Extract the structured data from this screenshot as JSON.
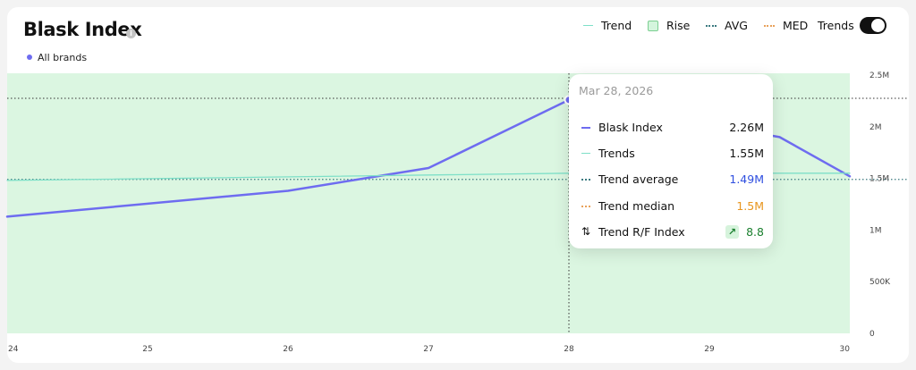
{
  "header": {
    "title": "Blask Index",
    "info_icon": "info-icon",
    "subtitle": "All brands"
  },
  "legend": {
    "trend": "Trend",
    "rise": "Rise",
    "avg": "AVG",
    "med": "MED",
    "toggle_label": "Trends",
    "toggle_on": true
  },
  "tooltip": {
    "date": "Mar 28, 2026",
    "rows": [
      {
        "label": "Blask Index",
        "value": "2.26M"
      },
      {
        "label": "Trends",
        "value": "1.55M"
      },
      {
        "label": "Trend average",
        "value": "1.49M"
      },
      {
        "label": "Trend median",
        "value": "1.5M"
      },
      {
        "label": "Trend R/F Index",
        "value": "8.8",
        "icon": "trend-up-arrow-icon"
      }
    ]
  },
  "colors": {
    "index_line": "#6e6cf0",
    "trend_line": "#7ee0c8",
    "rise_fill": "#dbf6e1",
    "avg_line": "#3c7a80",
    "med_line": "#e9a25b",
    "value_blue": "#2f4fe0",
    "value_orange": "#e8951e",
    "value_green": "#1a7f2e"
  },
  "chart_data": {
    "type": "line",
    "x": [
      24,
      25,
      26,
      27,
      28,
      29,
      30
    ],
    "x_ticks": [
      "24",
      "25",
      "26",
      "27",
      "28",
      "29",
      "30"
    ],
    "y_ticks": [
      "0",
      "500K",
      "1M",
      "1.5M",
      "2M",
      "2.5M"
    ],
    "y_tick_values": [
      0,
      500000,
      1000000,
      1500000,
      2000000,
      2500000
    ],
    "ylim": [
      0,
      2500000
    ],
    "series": [
      {
        "name": "Blask Index",
        "x": [
          24,
          26,
          27,
          28,
          29.5,
          30
        ],
        "values": [
          1130000,
          1380000,
          1600000,
          2260000,
          1900000,
          1520000
        ]
      },
      {
        "name": "Trend",
        "x": [
          24,
          28,
          30
        ],
        "values": [
          1480000,
          1550000,
          1550000
        ]
      }
    ],
    "avg": 1490000,
    "med": 1500000,
    "rise_region": [
      24,
      30
    ],
    "highlight_x": 28,
    "highlight_label": "Mar 28, 2026"
  }
}
